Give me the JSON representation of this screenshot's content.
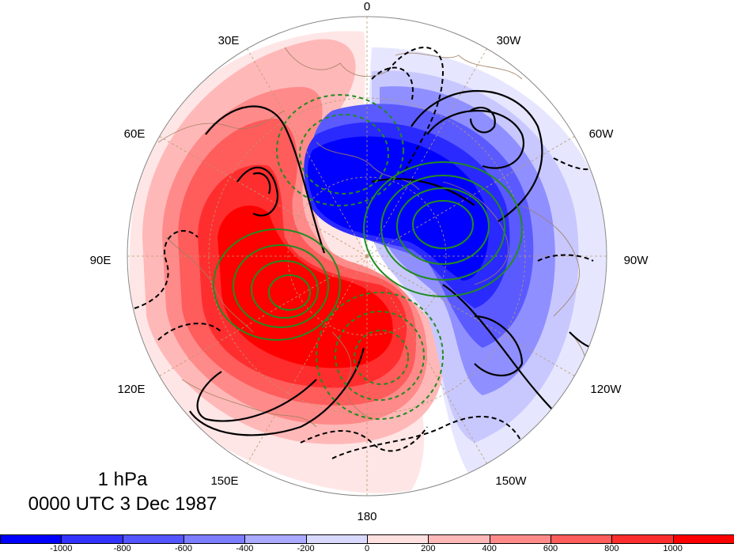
{
  "figure": {
    "level": "1 hPa",
    "datetime": "0000 UTC 3 Dec 1987"
  },
  "longitude_labels": [
    {
      "text": "0",
      "lon": 0
    },
    {
      "text": "30W",
      "lon": -30
    },
    {
      "text": "60W",
      "lon": -60
    },
    {
      "text": "90W",
      "lon": -90
    },
    {
      "text": "120W",
      "lon": -120
    },
    {
      "text": "150W",
      "lon": -150
    },
    {
      "text": "180",
      "lon": 180
    },
    {
      "text": "150E",
      "lon": 150
    },
    {
      "text": "120E",
      "lon": 120
    },
    {
      "text": "90E",
      "lon": 90
    },
    {
      "text": "60E",
      "lon": 60
    },
    {
      "text": "30E",
      "lon": 30
    }
  ],
  "colorbar": {
    "colors": [
      "#0000ff",
      "#3333ff",
      "#5555ff",
      "#7d7dff",
      "#aaaaff",
      "#d9d9ff",
      "#ffe0e0",
      "#ffb8b8",
      "#ff8a8a",
      "#ff5c5c",
      "#ff2e2e",
      "#ff0000"
    ],
    "labels": [
      "-1000",
      "-800",
      "-600",
      "-400",
      "-200",
      "0",
      "200",
      "400",
      "600",
      "800",
      "1000"
    ]
  },
  "colors": {
    "positive_strong": "#ff0000",
    "negative_strong": "#0000ff",
    "contour_black": "#000000",
    "contour_green": "#228b22",
    "coastline": "#a08060"
  }
}
